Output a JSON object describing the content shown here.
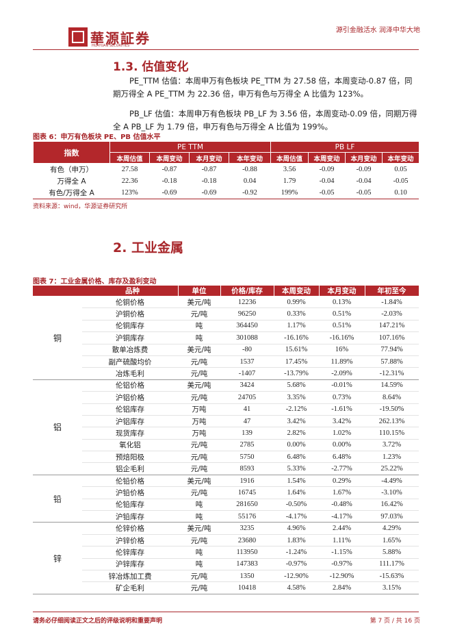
{
  "header": {
    "logo_name": "華源証券",
    "logo_sub": "HUAYUAN SECURITIES",
    "slogan": "源引金融活水 润泽中华大地"
  },
  "section_1_3": {
    "title": "1.3. 估值变化",
    "paragraphs": [
      "PE_TTM 估值：本周申万有色板块 PE_TTM 为 27.58 倍，本周变动-0.87 倍，同期万得全 A PE_TTM 为 22.36 倍，申万有色与万得全 A 比值为 123%。",
      "PB_LF 估值：本周申万有色板块 PB_LF 为 3.56 倍，本周变动-0.09 倍，同期万得全 A PB_LF 为 1.79 倍，申万有色与万得全 A 比值为 199%。"
    ]
  },
  "table6": {
    "caption": "图表 6：申万有色板块 PE、PB 估值水平",
    "header_top": [
      "指数",
      "PE TTM",
      "PB LF"
    ],
    "header_sub": [
      "本周估值",
      "本周变动",
      "本月变动",
      "本年变动",
      "本周估值",
      "本周变动",
      "本月变动",
      "本年变动"
    ],
    "rows": [
      [
        "有色（申万）",
        "27.58",
        "-0.87",
        "-0.87",
        "-0.88",
        "3.56",
        "-0.09",
        "-0.09",
        "0.05"
      ],
      [
        "万得全 A",
        "22.36",
        "-0.18",
        "-0.18",
        "0.04",
        "1.79",
        "-0.04",
        "-0.04",
        "-0.05"
      ],
      [
        "有色/万得全 A",
        "123%",
        "-0.69",
        "-0.69",
        "-0.92",
        "199%",
        "-0.05",
        "-0.05",
        "0.10"
      ]
    ],
    "source": "资料来源：wind，华源证券研究所"
  },
  "section_2": {
    "title": "2. 工业金属"
  },
  "table7": {
    "caption": "图表 7：工业金属价格、库存及盈利变动",
    "columns": [
      "品种",
      "单位",
      "价格/库存",
      "本周变动",
      "本月变动",
      "年初至今"
    ],
    "groups": [
      {
        "name": "铜",
        "rows": [
          [
            "伦铜价格",
            "美元/吨",
            "12236",
            "0.99%",
            "0.13%",
            "-1.84%"
          ],
          [
            "沪铜价格",
            "元/吨",
            "96250",
            "0.33%",
            "0.51%",
            "-2.03%"
          ],
          [
            "伦铜库存",
            "吨",
            "364450",
            "1.17%",
            "0.51%",
            "147.21%"
          ],
          [
            "沪铜库存",
            "吨",
            "301088",
            "-16.16%",
            "-16.16%",
            "107.16%"
          ],
          [
            "散单冶炼费",
            "美元/吨",
            "-80",
            "15.61%",
            "16%",
            "77.94%"
          ],
          [
            "副产硫酸均价",
            "元/吨",
            "1537",
            "17.45%",
            "11.89%",
            "57.88%"
          ],
          [
            "冶炼毛利",
            "元/吨",
            "-1407",
            "-13.79%",
            "-2.09%",
            "-12.31%"
          ]
        ]
      },
      {
        "name": "铝",
        "rows": [
          [
            "伦铝价格",
            "美元/吨",
            "3424",
            "5.68%",
            "-0.01%",
            "14.59%"
          ],
          [
            "沪铝价格",
            "元/吨",
            "24705",
            "3.35%",
            "0.73%",
            "8.64%"
          ],
          [
            "伦铝库存",
            "万吨",
            "41",
            "-2.12%",
            "-1.61%",
            "-19.50%"
          ],
          [
            "沪铝库存",
            "万吨",
            "47",
            "3.42%",
            "3.42%",
            "262.13%"
          ],
          [
            "现货库存",
            "万吨",
            "139",
            "2.82%",
            "1.02%",
            "110.15%"
          ],
          [
            "氧化铝",
            "元/吨",
            "2785",
            "0.00%",
            "0.00%",
            "3.72%"
          ],
          [
            "预焙阳极",
            "元/吨",
            "5750",
            "6.48%",
            "6.48%",
            "1.23%"
          ],
          [
            "铝企毛利",
            "元/吨",
            "8593",
            "5.33%",
            "-2.77%",
            "25.22%"
          ]
        ]
      },
      {
        "name": "铅",
        "rows": [
          [
            "伦铅价格",
            "美元/吨",
            "1916",
            "1.54%",
            "0.29%",
            "-4.49%"
          ],
          [
            "沪铅价格",
            "元/吨",
            "16745",
            "1.64%",
            "1.67%",
            "-3.10%"
          ],
          [
            "伦铅库存",
            "吨",
            "281650",
            "-0.50%",
            "-0.48%",
            "16.42%"
          ],
          [
            "沪铅库存",
            "吨",
            "55176",
            "-4.17%",
            "-4.17%",
            "97.03%"
          ]
        ]
      },
      {
        "name": "锌",
        "rows": [
          [
            "伦锌价格",
            "美元/吨",
            "3235",
            "4.96%",
            "2.44%",
            "4.29%"
          ],
          [
            "沪锌价格",
            "元/吨",
            "23680",
            "1.83%",
            "1.11%",
            "1.65%"
          ],
          [
            "伦锌库存",
            "吨",
            "113950",
            "-1.24%",
            "-1.15%",
            "5.88%"
          ],
          [
            "沪锌库存",
            "吨",
            "147383",
            "-0.97%",
            "-0.97%",
            "111.17%"
          ],
          [
            "锌冶炼加工费",
            "元/吨",
            "1350",
            "-12.90%",
            "-12.90%",
            "-15.63%"
          ],
          [
            "矿企毛利",
            "元/吨",
            "10418",
            "4.58%",
            "2.84%",
            "3.15%"
          ]
        ]
      }
    ]
  },
  "footer": {
    "disclaimer": "请务必仔细阅读正文之后的评级说明和重要声明",
    "page": "第 7 页 / 共 16 页"
  }
}
